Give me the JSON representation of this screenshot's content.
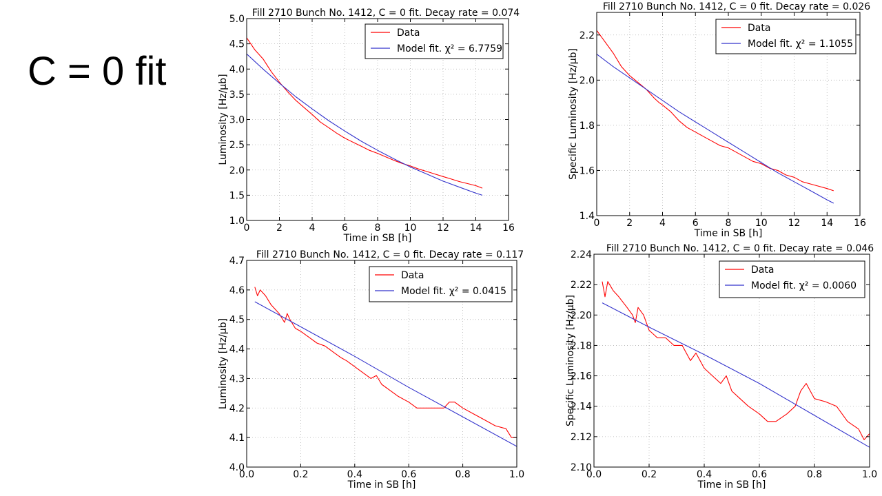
{
  "slide": {
    "title": "C = 0 fit"
  },
  "chart_data": [
    {
      "type": "line",
      "title": "Fill 2710 Bunch No. 1412, C = 0 fit. Decay rate = 0.074",
      "xlabel": "Time in SB [h]",
      "ylabel": "Luminosity [Hz/μb]",
      "xlim": [
        0,
        16
      ],
      "ylim": [
        1.0,
        5.0
      ],
      "xticks": [
        0,
        2,
        4,
        6,
        8,
        10,
        12,
        14,
        16
      ],
      "yticks": [
        1.0,
        1.5,
        2.0,
        2.5,
        3.0,
        3.5,
        4.0,
        4.5,
        5.0
      ],
      "grid": true,
      "legend_position": "top-right",
      "series": [
        {
          "name": "Data",
          "color": "#ff0000",
          "x": [
            0.0,
            0.5,
            1.0,
            1.5,
            2.0,
            2.5,
            3.0,
            3.5,
            4.0,
            4.5,
            5.0,
            5.5,
            6.0,
            6.5,
            7.0,
            7.5,
            8.0,
            8.5,
            9.0,
            9.5,
            10.0,
            10.5,
            11.0,
            11.5,
            12.0,
            12.5,
            13.0,
            13.5,
            14.0,
            14.4
          ],
          "y": [
            4.62,
            4.38,
            4.2,
            3.95,
            3.74,
            3.55,
            3.38,
            3.24,
            3.1,
            2.95,
            2.84,
            2.73,
            2.63,
            2.55,
            2.47,
            2.39,
            2.33,
            2.26,
            2.19,
            2.13,
            2.08,
            2.02,
            1.97,
            1.92,
            1.87,
            1.82,
            1.77,
            1.73,
            1.69,
            1.64
          ]
        },
        {
          "name": "Model fit. χ² = 6.7759",
          "color": "#3333cc",
          "x": [
            0.0,
            1.0,
            2.0,
            3.0,
            4.0,
            5.0,
            6.0,
            7.0,
            8.0,
            9.0,
            10.0,
            11.0,
            12.0,
            13.0,
            14.0,
            14.4
          ],
          "y": [
            4.3,
            4.0,
            3.72,
            3.45,
            3.21,
            2.98,
            2.77,
            2.57,
            2.39,
            2.22,
            2.06,
            1.92,
            1.78,
            1.66,
            1.54,
            1.5
          ]
        }
      ]
    },
    {
      "type": "line",
      "title": "Fill 2710 Bunch No. 1412, C = 0 fit. Decay rate = 0.026",
      "xlabel": "Time in SB [h]",
      "ylabel": "Specific Luminosity [Hz/μb]",
      "xlim": [
        0,
        16
      ],
      "ylim": [
        1.4,
        2.3
      ],
      "xticks": [
        0,
        2,
        4,
        6,
        8,
        10,
        12,
        14,
        16
      ],
      "yticks": [
        1.4,
        1.6,
        1.8,
        2.0,
        2.2
      ],
      "grid": true,
      "legend_position": "top-right",
      "series": [
        {
          "name": "Data",
          "color": "#ff0000",
          "x": [
            0.0,
            0.5,
            1.0,
            1.5,
            2.0,
            2.5,
            3.0,
            3.5,
            3.8,
            4.0,
            4.5,
            5.0,
            5.5,
            6.0,
            6.5,
            7.0,
            7.5,
            8.0,
            8.5,
            9.0,
            9.5,
            10.0,
            10.5,
            11.0,
            11.5,
            12.0,
            12.5,
            13.0,
            13.5,
            14.0,
            14.4
          ],
          "y": [
            2.22,
            2.17,
            2.12,
            2.06,
            2.02,
            1.99,
            1.96,
            1.92,
            1.9,
            1.89,
            1.86,
            1.82,
            1.79,
            1.77,
            1.75,
            1.73,
            1.71,
            1.7,
            1.68,
            1.66,
            1.64,
            1.63,
            1.61,
            1.6,
            1.58,
            1.57,
            1.55,
            1.54,
            1.53,
            1.52,
            1.51
          ]
        },
        {
          "name": "Model fit. χ² = 1.1055",
          "color": "#3333cc",
          "x": [
            0.0,
            1.0,
            2.0,
            3.0,
            4.0,
            5.0,
            6.0,
            7.0,
            8.0,
            9.0,
            10.0,
            11.0,
            12.0,
            13.0,
            14.0,
            14.4
          ],
          "y": [
            2.115,
            2.06,
            2.01,
            1.96,
            1.91,
            1.86,
            1.815,
            1.77,
            1.725,
            1.68,
            1.635,
            1.59,
            1.55,
            1.51,
            1.47,
            1.455
          ]
        }
      ]
    },
    {
      "type": "line",
      "title": "Fill 2710 Bunch No. 1412, C = 0 fit. Decay rate = 0.117",
      "xlabel": "Time in SB [h]",
      "ylabel": "Luminosity [Hz/μb]",
      "xlim": [
        0.0,
        1.0
      ],
      "ylim": [
        4.0,
        4.7
      ],
      "xticks": [
        0.0,
        0.2,
        0.4,
        0.6,
        0.8,
        1.0
      ],
      "yticks": [
        4.0,
        4.1,
        4.2,
        4.3,
        4.4,
        4.5,
        4.6,
        4.7
      ],
      "grid": true,
      "legend_position": "top-right",
      "series": [
        {
          "name": "Data",
          "color": "#ff0000",
          "x": [
            0.03,
            0.04,
            0.05,
            0.07,
            0.09,
            0.12,
            0.14,
            0.15,
            0.16,
            0.18,
            0.2,
            0.23,
            0.26,
            0.29,
            0.32,
            0.35,
            0.37,
            0.4,
            0.43,
            0.46,
            0.48,
            0.5,
            0.53,
            0.56,
            0.6,
            0.63,
            0.66,
            0.7,
            0.73,
            0.75,
            0.77,
            0.8,
            0.84,
            0.88,
            0.92,
            0.96,
            0.98,
            1.0
          ],
          "y": [
            4.61,
            4.58,
            4.6,
            4.58,
            4.55,
            4.52,
            4.49,
            4.52,
            4.5,
            4.47,
            4.46,
            4.44,
            4.42,
            4.41,
            4.39,
            4.37,
            4.36,
            4.34,
            4.32,
            4.3,
            4.31,
            4.28,
            4.26,
            4.24,
            4.22,
            4.2,
            4.2,
            4.2,
            4.2,
            4.22,
            4.22,
            4.2,
            4.18,
            4.16,
            4.14,
            4.13,
            4.1,
            4.1
          ]
        },
        {
          "name": "Model fit. χ² = 0.0415",
          "color": "#3333cc",
          "x": [
            0.03,
            0.2,
            0.4,
            0.6,
            0.8,
            1.0
          ],
          "y": [
            4.56,
            4.475,
            4.375,
            4.27,
            4.17,
            4.07
          ]
        }
      ]
    },
    {
      "type": "line",
      "title": "Fill 2710 Bunch No. 1412, C = 0 fit. Decay rate = 0.046",
      "xlabel": "Time in SB [h]",
      "ylabel": "Specific Luminosity [Hz/μb]",
      "xlim": [
        0.0,
        1.0
      ],
      "ylim": [
        2.1,
        2.24
      ],
      "xticks": [
        0.0,
        0.2,
        0.4,
        0.6,
        0.8,
        1.0
      ],
      "yticks": [
        2.1,
        2.12,
        2.14,
        2.16,
        2.18,
        2.2,
        2.22,
        2.24
      ],
      "grid": true,
      "legend_position": "top-right",
      "series": [
        {
          "name": "Data",
          "color": "#ff0000",
          "x": [
            0.03,
            0.04,
            0.05,
            0.07,
            0.09,
            0.12,
            0.14,
            0.15,
            0.16,
            0.18,
            0.2,
            0.23,
            0.26,
            0.29,
            0.32,
            0.35,
            0.37,
            0.4,
            0.43,
            0.46,
            0.48,
            0.5,
            0.53,
            0.56,
            0.6,
            0.63,
            0.66,
            0.7,
            0.73,
            0.75,
            0.77,
            0.8,
            0.84,
            0.88,
            0.92,
            0.96,
            0.98,
            1.0
          ],
          "y": [
            2.222,
            2.212,
            2.222,
            2.216,
            2.212,
            2.205,
            2.2,
            2.195,
            2.205,
            2.2,
            2.19,
            2.185,
            2.185,
            2.18,
            2.18,
            2.17,
            2.175,
            2.165,
            2.16,
            2.155,
            2.16,
            2.15,
            2.145,
            2.14,
            2.135,
            2.13,
            2.13,
            2.135,
            2.14,
            2.15,
            2.155,
            2.145,
            2.143,
            2.14,
            2.13,
            2.125,
            2.118,
            2.122
          ]
        },
        {
          "name": "Model fit. χ² = 0.0060",
          "color": "#3333cc",
          "x": [
            0.03,
            0.2,
            0.4,
            0.6,
            0.8,
            1.0
          ],
          "y": [
            2.208,
            2.192,
            2.174,
            2.155,
            2.134,
            2.113
          ]
        }
      ]
    }
  ]
}
